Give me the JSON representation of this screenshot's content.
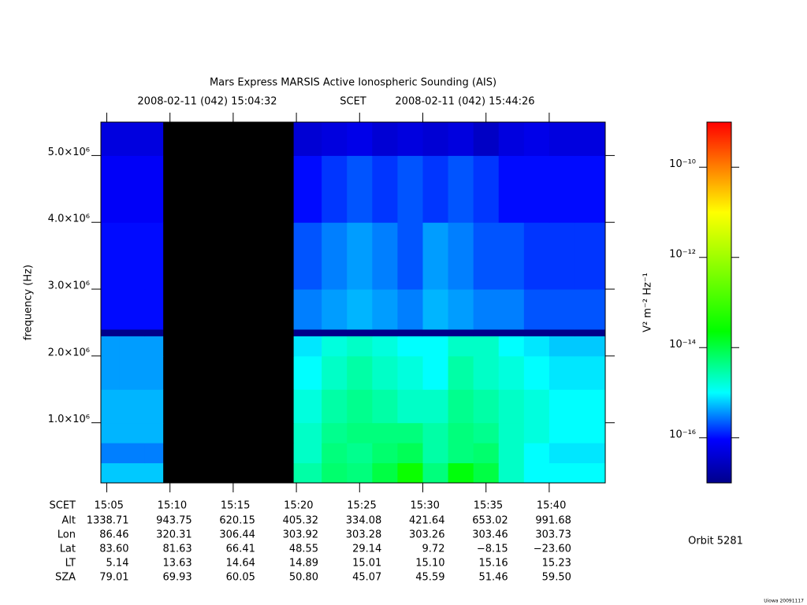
{
  "chart_data": {
    "type": "spectrogram",
    "title": "Mars Express MARSIS Active Ionospheric Sounding (AIS)",
    "subtitle": [
      "2008-02-11 (042) 15:04:32",
      "SCET",
      "2008-02-11 (042) 15:44:26"
    ],
    "y_label": "frequency (Hz)",
    "xlim": [
      "15:04:32",
      "15:44:26"
    ],
    "xticks": [
      "15:05",
      "15:10",
      "15:15",
      "15:20",
      "15:25",
      "15:30",
      "15:35",
      "15:40"
    ],
    "ylim": [
      100000,
      5500000
    ],
    "yticks": [
      {
        "value": 1000000,
        "label": "1.0×10⁶"
      },
      {
        "value": 2000000,
        "label": "2.0×10⁶"
      },
      {
        "value": 3000000,
        "label": "3.0×10⁶"
      },
      {
        "value": 4000000,
        "label": "4.0×10⁶"
      },
      {
        "value": 5000000,
        "label": "5.0×10⁶"
      }
    ],
    "time_edges": [
      "15:04:32",
      "15:06",
      "15:08",
      "15:09:28",
      "15:19:47",
      "15:22",
      "15:24",
      "15:26",
      "15:28",
      "15:30",
      "15:32",
      "15:34",
      "15:36",
      "15:38",
      "15:40",
      "15:42",
      "15:44:26"
    ],
    "freq_edges": [
      100000,
      400000,
      700000,
      1000000,
      1500000,
      2000000,
      2300000,
      2400000,
      3000000,
      4000000,
      5000000,
      5500000
    ],
    "z": [
      [
        6e-16,
        6e-16,
        6e-16,
        null,
        3e-15,
        6e-15,
        5e-15,
        1e-14,
        3e-14,
        5e-15,
        2e-14,
        1e-14,
        2e-15,
        1e-15,
        1e-15,
        1e-15
      ],
      [
        3e-16,
        3e-16,
        3e-16,
        null,
        2e-15,
        5e-15,
        4e-15,
        6e-15,
        8e-15,
        3e-15,
        5e-15,
        6e-15,
        2e-15,
        1e-15,
        8e-16,
        8e-16
      ],
      [
        5e-16,
        5e-16,
        5e-16,
        null,
        2e-15,
        4e-15,
        5e-15,
        5e-15,
        5e-15,
        3e-15,
        5e-15,
        4e-15,
        2e-15,
        1.5e-15,
        1e-15,
        1e-15
      ],
      [
        5e-16,
        5e-16,
        5e-16,
        null,
        1.5e-15,
        3e-15,
        4e-15,
        3e-15,
        2e-15,
        2e-15,
        4e-15,
        3e-15,
        2e-15,
        1.5e-15,
        1e-15,
        1e-15
      ],
      [
        4e-16,
        4e-16,
        4e-16,
        null,
        1e-15,
        2e-15,
        3e-15,
        2e-15,
        1.5e-15,
        1e-15,
        3e-15,
        2e-15,
        1.5e-15,
        1e-15,
        8e-16,
        8e-16
      ],
      [
        4e-16,
        4e-16,
        4e-16,
        null,
        8e-16,
        1.5e-15,
        2e-15,
        1.5e-15,
        1e-15,
        1e-15,
        2e-15,
        2e-15,
        1e-15,
        8e-16,
        6e-16,
        6e-16
      ],
      [
        1e-17,
        1e-17,
        1e-17,
        null,
        1e-17,
        1e-17,
        1e-17,
        1e-17,
        1e-17,
        1e-17,
        1e-17,
        1e-17,
        1e-17,
        1e-17,
        1e-17,
        1e-17
      ],
      [
        1e-16,
        1e-16,
        1e-16,
        null,
        3e-16,
        4e-16,
        5e-16,
        4e-16,
        3e-16,
        5e-16,
        4e-16,
        3e-16,
        3e-16,
        2e-16,
        2e-16,
        2e-16
      ],
      [
        1e-16,
        1e-16,
        1e-16,
        null,
        2e-16,
        3e-16,
        4e-16,
        3e-16,
        2e-16,
        4e-16,
        3e-16,
        2e-16,
        2e-16,
        1.5e-16,
        1.5e-16,
        1.5e-16
      ],
      [
        8e-17,
        8e-17,
        8e-17,
        null,
        1e-16,
        1.5e-16,
        2e-16,
        1.5e-16,
        2e-16,
        1.5e-16,
        2e-16,
        1.5e-16,
        1e-16,
        1e-16,
        1e-16,
        1e-16
      ],
      [
        5e-17,
        5e-17,
        5e-17,
        null,
        4e-17,
        5e-17,
        6e-17,
        4e-17,
        5e-17,
        4e-17,
        5e-17,
        3e-17,
        5e-17,
        6e-17,
        5e-17,
        5e-17
      ]
    ],
    "gap_color": "#000000",
    "colorbar": {
      "label": "V² m⁻² Hz⁻¹",
      "log": true,
      "lim": [
        1e-17,
        1e-09
      ],
      "ticks": [
        {
          "value": 1e-16,
          "label": "10⁻¹⁶"
        },
        {
          "value": 1e-14,
          "label": "10⁻¹⁴"
        },
        {
          "value": 1e-12,
          "label": "10⁻¹²"
        },
        {
          "value": 1e-10,
          "label": "10⁻¹⁰"
        }
      ],
      "stops": [
        0,
        0.12,
        0.25,
        0.42,
        0.75,
        1
      ],
      "colors": [
        "#00008b",
        "#0000ff",
        "#00ffff",
        "#00ff00",
        "#ffff00",
        "#ff0000"
      ]
    },
    "x_table": {
      "row_labels": [
        "SCET",
        "Alt",
        "Lon",
        "Lat",
        "LT",
        "SZA"
      ],
      "rows": [
        [
          "1338.71",
          "943.75",
          "620.15",
          "405.32",
          "334.08",
          "421.64",
          "653.02",
          "991.68"
        ],
        [
          "86.46",
          "320.31",
          "306.44",
          "303.92",
          "303.28",
          "303.26",
          "303.46",
          "303.73"
        ],
        [
          "83.60",
          "81.63",
          "66.41",
          "48.55",
          "29.14",
          "9.72",
          "−8.15",
          "−23.60"
        ],
        [
          "5.14",
          "13.63",
          "14.64",
          "14.89",
          "15.01",
          "15.10",
          "15.16",
          "15.23"
        ],
        [
          "79.01",
          "69.93",
          "60.05",
          "50.80",
          "45.07",
          "45.59",
          "51.46",
          "59.50"
        ]
      ]
    },
    "orbit": "Orbit 5281",
    "footer": "Uiowa 20091117"
  }
}
